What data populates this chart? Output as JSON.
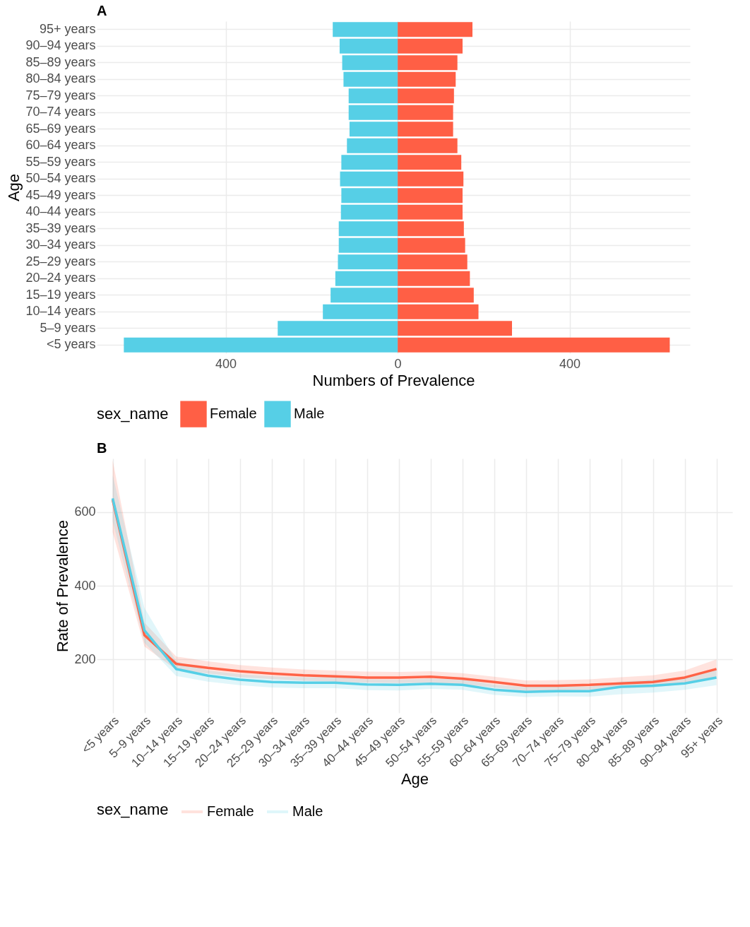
{
  "chart_data": [
    {
      "type": "bar",
      "orientation": "horizontal",
      "stacked": true,
      "title": "A",
      "xlabel": "Numbers of Prevalence",
      "ylabel": "Age",
      "legend_title": "sex_name",
      "legend": "bottom",
      "grid": true,
      "categories": [
        "95+ years",
        "90–94 years",
        "85–89 years",
        "80–84 years",
        "75–79 years",
        "70–74 years",
        "65–69 years",
        "60–64 years",
        "55–59 years",
        "50–54 years",
        "45–49 years",
        "40–44 years",
        "35–39 years",
        "30–34 years",
        "25–29 years",
        "20–24 years",
        "15–19 years",
        "10–14 years",
        "5–9 years",
        "<5 years"
      ],
      "xlim": [
        -700,
        680
      ],
      "xticks": [
        {
          "value": -400,
          "label": "400"
        },
        0,
        400
      ],
      "series": [
        {
          "name": "Female",
          "color": "#ff5f45",
          "values": [
            174,
            151,
            139,
            135,
            131,
            129,
            129,
            139,
            148,
            153,
            151,
            151,
            154,
            157,
            162,
            168,
            177,
            188,
            266,
            633
          ]
        },
        {
          "name": "Male",
          "color": "#56cfe6",
          "values": [
            -151,
            -135,
            -129,
            -126,
            -114,
            -114,
            -112,
            -118,
            -131,
            -134,
            -131,
            -132,
            -137,
            -137,
            -139,
            -145,
            -156,
            -174,
            -279,
            -637
          ]
        }
      ]
    },
    {
      "type": "line",
      "title": "B",
      "xlabel": "Age",
      "ylabel": "Rate of Prevalence",
      "legend_title": "sex_name",
      "legend": "bottom",
      "grid": true,
      "categories": [
        "<5 years",
        "5–9 years",
        "10–14 years",
        "15–19 years",
        "20–24 years",
        "25–29 years",
        "30–34 years",
        "35–39 years",
        "40–44 years",
        "45–49 years",
        "50–54 years",
        "55–59 years",
        "60–64 years",
        "65–69 years",
        "70–74 years",
        "75–79 years",
        "80–84 years",
        "85–89 years",
        "90–94 years",
        "95+ years"
      ],
      "ylim": [
        55,
        745
      ],
      "yticks": [
        200,
        400,
        600
      ],
      "series": [
        {
          "name": "Female",
          "color": "#ff6347",
          "values": [
            633,
            266,
            188,
            177,
            168,
            162,
            157,
            154,
            151,
            151,
            153,
            148,
            139,
            129,
            129,
            131,
            135,
            139,
            151,
            174
          ],
          "lower": [
            545,
            235,
            172,
            162,
            152,
            147,
            142,
            140,
            137,
            136,
            137,
            133,
            124,
            115,
            116,
            118,
            122,
            124,
            133,
            152
          ],
          "upper": [
            740,
            300,
            208,
            195,
            185,
            178,
            173,
            170,
            167,
            166,
            168,
            163,
            153,
            143,
            144,
            146,
            152,
            157,
            170,
            200
          ]
        },
        {
          "name": "Male",
          "color": "#56cfe6",
          "values": [
            637,
            279,
            174,
            156,
            145,
            139,
            137,
            137,
            132,
            131,
            134,
            131,
            118,
            112,
            114,
            114,
            126,
            129,
            135,
            151
          ],
          "lower": [
            575,
            245,
            155,
            140,
            130,
            124,
            122,
            122,
            117,
            116,
            120,
            118,
            104,
            98,
            100,
            99,
            106,
            110,
            118,
            130
          ],
          "upper": [
            700,
            340,
            195,
            170,
            160,
            154,
            152,
            152,
            146,
            145,
            148,
            146,
            131,
            125,
            127,
            126,
            140,
            145,
            152,
            172
          ]
        }
      ]
    }
  ]
}
